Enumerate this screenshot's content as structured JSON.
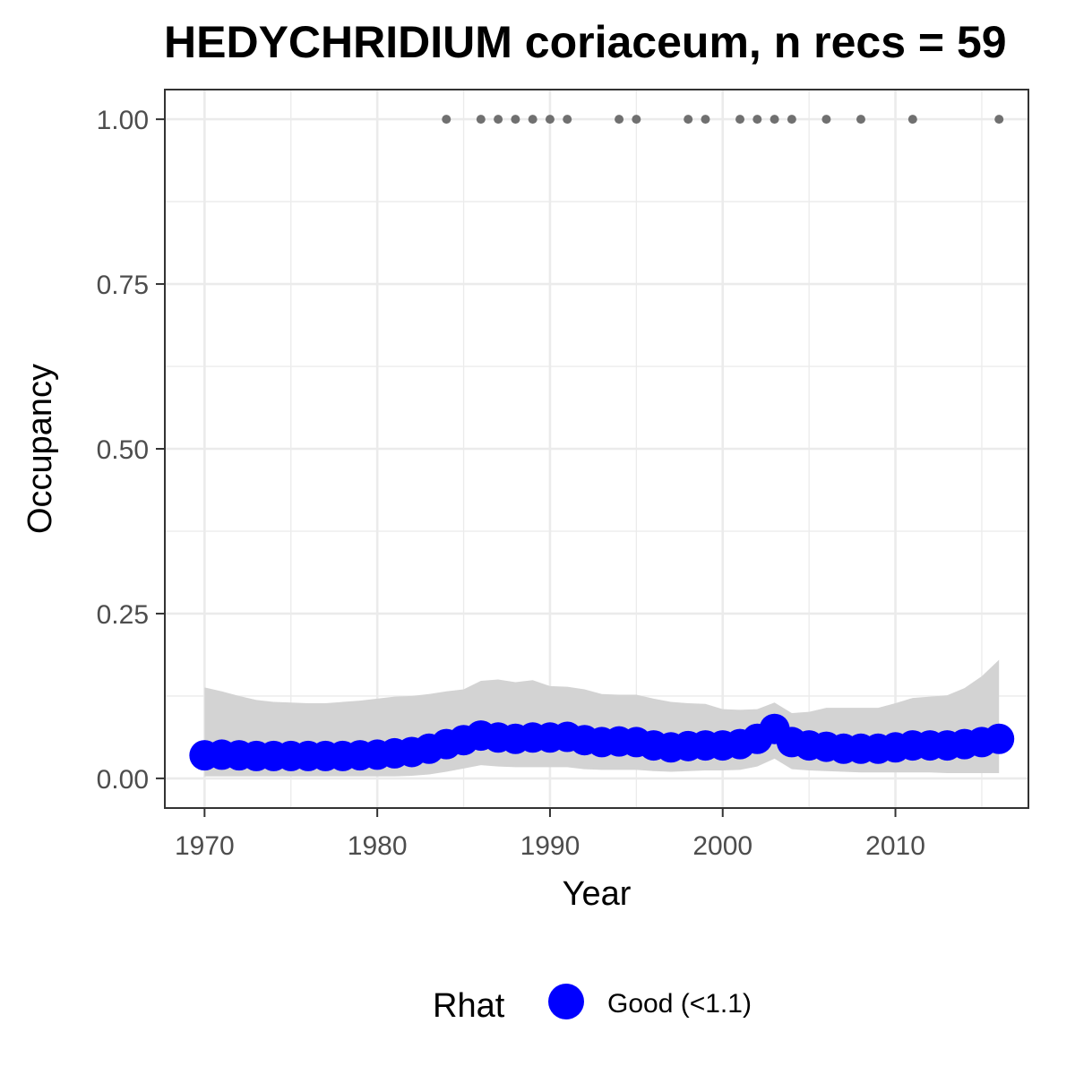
{
  "chart_data": {
    "type": "line",
    "title": "HEDYCHRIDIUM coriaceum, n recs = 59",
    "xlabel": "Year",
    "ylabel": "Occupancy",
    "xlim": [
      1967.7,
      2017.7
    ],
    "ylim": [
      -0.045,
      1.045
    ],
    "x_ticks": [
      1970,
      1980,
      1990,
      2000,
      2010
    ],
    "x_tick_labels": [
      "1970",
      "1980",
      "1990",
      "2000",
      "2010"
    ],
    "y_ticks": [
      0,
      0.25,
      0.5,
      0.75,
      1.0
    ],
    "y_tick_labels": [
      "0.00",
      "0.25",
      "0.50",
      "0.75",
      "1.00"
    ],
    "grid": true,
    "colors": {
      "estimate": "#0000ff",
      "ribbon": "#d3d3d3",
      "records": "#707070",
      "grid": "#ebebeb",
      "border": "#333333"
    },
    "series": [
      {
        "name": "Good (<1.1)",
        "type": "line+points",
        "x": [
          1970,
          1971,
          1972,
          1973,
          1974,
          1975,
          1976,
          1977,
          1978,
          1979,
          1980,
          1981,
          1982,
          1983,
          1984,
          1985,
          1986,
          1987,
          1988,
          1989,
          1990,
          1991,
          1992,
          1993,
          1994,
          1995,
          1996,
          1997,
          1998,
          1999,
          2000,
          2001,
          2002,
          2003,
          2004,
          2005,
          2006,
          2007,
          2008,
          2009,
          2010,
          2011,
          2012,
          2013,
          2014,
          2015,
          2016
        ],
        "y": [
          0.035,
          0.036,
          0.035,
          0.034,
          0.034,
          0.034,
          0.034,
          0.034,
          0.034,
          0.035,
          0.036,
          0.038,
          0.04,
          0.045,
          0.052,
          0.058,
          0.065,
          0.062,
          0.06,
          0.062,
          0.062,
          0.063,
          0.058,
          0.055,
          0.056,
          0.055,
          0.05,
          0.047,
          0.049,
          0.05,
          0.05,
          0.052,
          0.06,
          0.075,
          0.055,
          0.05,
          0.048,
          0.045,
          0.045,
          0.045,
          0.047,
          0.05,
          0.05,
          0.05,
          0.052,
          0.055,
          0.06
        ]
      },
      {
        "name": "credible interval",
        "type": "ribbon",
        "x": [
          1970,
          1971,
          1972,
          1973,
          1974,
          1975,
          1976,
          1977,
          1978,
          1979,
          1980,
          1981,
          1982,
          1983,
          1984,
          1985,
          1986,
          1987,
          1988,
          1989,
          1990,
          1991,
          1992,
          1993,
          1994,
          1995,
          1996,
          1997,
          1998,
          1999,
          2000,
          2001,
          2002,
          2003,
          2004,
          2005,
          2006,
          2007,
          2008,
          2009,
          2010,
          2011,
          2012,
          2013,
          2014,
          2015,
          2016
        ],
        "lower": [
          0.003,
          0.003,
          0.003,
          0.003,
          0.003,
          0.003,
          0.003,
          0.003,
          0.003,
          0.003,
          0.003,
          0.003,
          0.004,
          0.006,
          0.01,
          0.015,
          0.02,
          0.018,
          0.017,
          0.017,
          0.017,
          0.017,
          0.014,
          0.013,
          0.013,
          0.013,
          0.011,
          0.01,
          0.011,
          0.012,
          0.012,
          0.013,
          0.018,
          0.03,
          0.014,
          0.012,
          0.011,
          0.01,
          0.009,
          0.009,
          0.009,
          0.009,
          0.009,
          0.008,
          0.008,
          0.008,
          0.008
        ],
        "upper": [
          0.138,
          0.132,
          0.125,
          0.119,
          0.116,
          0.115,
          0.114,
          0.114,
          0.116,
          0.118,
          0.121,
          0.124,
          0.125,
          0.128,
          0.132,
          0.135,
          0.148,
          0.15,
          0.146,
          0.149,
          0.14,
          0.139,
          0.135,
          0.128,
          0.127,
          0.127,
          0.121,
          0.116,
          0.114,
          0.113,
          0.105,
          0.104,
          0.105,
          0.115,
          0.099,
          0.101,
          0.107,
          0.107,
          0.107,
          0.107,
          0.114,
          0.122,
          0.124,
          0.126,
          0.137,
          0.155,
          0.18
        ]
      },
      {
        "name": "records",
        "type": "scatter",
        "x": [
          1984,
          1986,
          1987,
          1988,
          1989,
          1990,
          1991,
          1994,
          1995,
          1998,
          1999,
          2001,
          2002,
          2003,
          2004,
          2006,
          2008,
          2011,
          2016
        ],
        "y": [
          1,
          1,
          1,
          1,
          1,
          1,
          1,
          1,
          1,
          1,
          1,
          1,
          1,
          1,
          1,
          1,
          1,
          1,
          1
        ]
      }
    ],
    "legend": {
      "title": "Rhat",
      "position": "bottom",
      "entries": [
        "Good (<1.1)"
      ]
    }
  }
}
